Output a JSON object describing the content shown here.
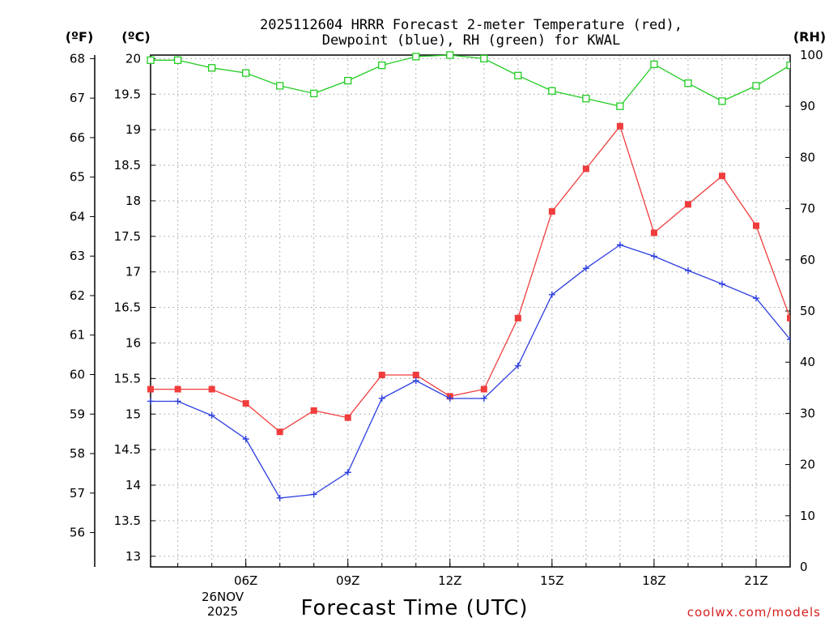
{
  "chart_data": {
    "type": "line",
    "title_line1": "2025112604 HRRR Forecast 2-meter Temperature (red),",
    "title_line2": "Dewpoint (blue), RH (green) for KWAL",
    "unit_f": "(ºF)",
    "unit_c": "(ºC)",
    "unit_rh": "(RH)",
    "xlabel": "Forecast Time (UTC)",
    "credit": "coolwx.com/models",
    "date_day": "26NOV",
    "date_year": "2025",
    "x_range": [
      3.2,
      22
    ],
    "c_range": [
      12.85,
      20.05
    ],
    "rh_range": [
      0,
      100
    ],
    "c_ticks": [
      "13",
      "13.5",
      "14",
      "14.5",
      "15",
      "15.5",
      "16",
      "16.5",
      "17",
      "17.5",
      "18",
      "18.5",
      "19",
      "19.5",
      "20"
    ],
    "f_ticks": [
      "56",
      "57",
      "58",
      "59",
      "60",
      "61",
      "62",
      "63",
      "64",
      "65",
      "66",
      "67",
      "68"
    ],
    "rh_ticks": [
      "0",
      "10",
      "20",
      "30",
      "40",
      "50",
      "60",
      "70",
      "80",
      "90",
      "100"
    ],
    "x_ticks": [
      {
        "hour": 6,
        "label": "06Z"
      },
      {
        "hour": 9,
        "label": "09Z"
      },
      {
        "hour": 12,
        "label": "12Z"
      },
      {
        "hour": 15,
        "label": "15Z"
      },
      {
        "hour": 18,
        "label": "18Z"
      },
      {
        "hour": 21,
        "label": "21Z"
      }
    ],
    "hours": [
      3.2,
      4,
      5,
      6,
      7,
      8,
      9,
      10,
      11,
      12,
      13,
      14,
      15,
      16,
      17,
      18,
      19,
      20,
      21,
      22
    ],
    "series": [
      {
        "name": "Temperature",
        "axis": "c",
        "color": "#f03c3c",
        "marker": "filled-square",
        "values": [
          15.35,
          15.35,
          15.35,
          15.15,
          14.75,
          15.05,
          14.95,
          15.55,
          15.55,
          15.25,
          15.35,
          16.35,
          17.85,
          18.45,
          19.05,
          17.55,
          17.95,
          18.35,
          17.65,
          16.35
        ]
      },
      {
        "name": "Dewpoint",
        "axis": "c",
        "color": "#2c3ee0",
        "marker": "plus",
        "values": [
          15.18,
          15.18,
          14.98,
          14.65,
          13.82,
          13.87,
          14.18,
          15.22,
          15.47,
          15.22,
          15.22,
          15.68,
          16.68,
          17.05,
          17.38,
          17.22,
          17.02,
          16.83,
          16.63,
          16.05
        ]
      },
      {
        "name": "RH",
        "axis": "rh",
        "color": "#22cc22",
        "marker": "open-square",
        "values": [
          99,
          99,
          97.5,
          96.5,
          94,
          92.5,
          95,
          98,
          99.7,
          100,
          99.3,
          96,
          93,
          91.5,
          90,
          98.2,
          94.5,
          91,
          94,
          98
        ]
      }
    ]
  }
}
